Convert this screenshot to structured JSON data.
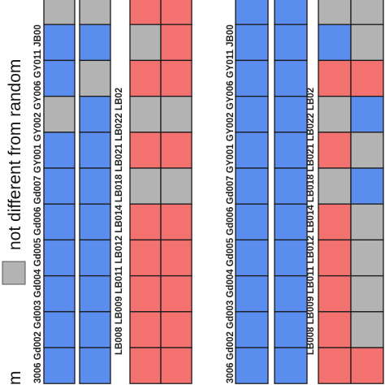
{
  "colors": {
    "blue": "#5b8def",
    "red": "#f3726f",
    "gray": "#b3b3b3",
    "border": "#1a1a1a"
  },
  "legend": {
    "entries": [
      {
        "key": "gray",
        "label": "not different from random"
      },
      {
        "key": "blue",
        "label": "m"
      }
    ]
  },
  "chart_data": {
    "type": "heatmap",
    "panels": [
      {
        "label_strip_left": "3006  Gd002  Gd003  Gd004  Gd005  Gd006  Gd007  GY001  GY002  GY006  GY011  JB00",
        "label_strip_right": "LB008  LB009  LB011  LB012  LB014  LB018  LB021  LB022  LB02",
        "columns": [
          [
            "gray",
            "blue",
            "blue",
            "gray",
            "blue",
            "blue",
            "blue",
            "blue",
            "blue",
            "blue",
            "blue"
          ],
          [
            "gray",
            "blue",
            "gray",
            "blue",
            "blue",
            "blue",
            "blue",
            "blue",
            "blue",
            "blue",
            "blue"
          ],
          [
            "red",
            "gray",
            "red",
            "gray",
            "red",
            "gray",
            "red",
            "red",
            "red",
            "red",
            "red"
          ],
          [
            "red",
            "red",
            "red",
            "gray",
            "red",
            "gray",
            "red",
            "red",
            "red",
            "red",
            "red"
          ]
        ]
      },
      {
        "label_strip_left": "3006  Gd002  Gd003  Gd004  Gd005  Gd006  Gd007  GY001  GY002  GY006  GY011  JB00",
        "label_strip_right": "LB008  LB009  LB011  LB012  LB014  LB018  LB021  LB022  LB02",
        "columns": [
          [
            "blue",
            "blue",
            "blue",
            "blue",
            "blue",
            "blue",
            "blue",
            "blue",
            "blue",
            "blue",
            "blue"
          ],
          [
            "blue",
            "blue",
            "blue",
            "blue",
            "blue",
            "blue",
            "blue",
            "blue",
            "blue",
            "blue",
            "blue"
          ],
          [
            "gray",
            "blue",
            "red",
            "gray",
            "red",
            "gray",
            "red",
            "red",
            "red",
            "red",
            "red"
          ],
          [
            "gray",
            "gray",
            "red",
            "blue",
            "gray",
            "blue",
            "gray",
            "gray",
            "gray",
            "gray",
            "red"
          ]
        ]
      }
    ]
  }
}
